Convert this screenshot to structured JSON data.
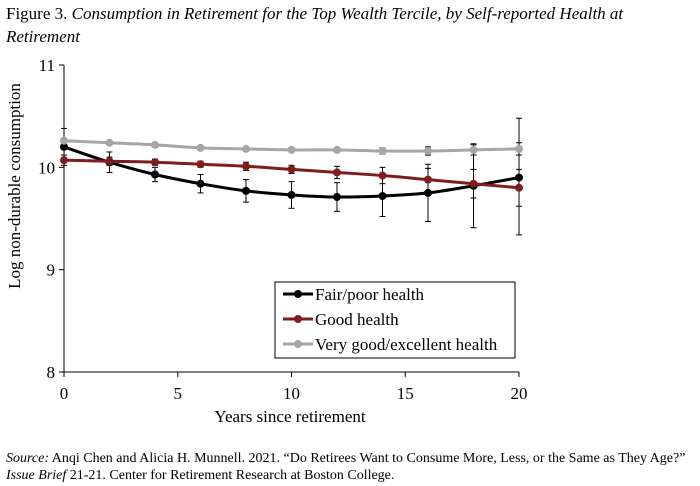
{
  "figure": {
    "number_label": "Figure 3.",
    "title": "Consumption in Retirement for the Top Wealth Tercile, by Self-reported Health at Retirement"
  },
  "source": {
    "label": "Source:",
    "text_1": " Anqi Chen and Alicia H. Munnell. 2021. “Do Retirees Want to Consume More, Less, or the Same as They Age?” ",
    "publication": "Issue Brief",
    "text_2": " 21-21. Center for Retirement Research at Boston College."
  },
  "chart_data": {
    "type": "line",
    "xlabel": "Years since retirement",
    "ylabel": "Log non-durable consumption",
    "xlim": [
      0,
      20
    ],
    "ylim": [
      8,
      11
    ],
    "x_ticks": [
      "0",
      "5",
      "10",
      "15",
      "20"
    ],
    "y_ticks": [
      "8",
      "9",
      "10",
      "11"
    ],
    "grid": false,
    "legend_position": "lower-right",
    "x": [
      0,
      2,
      4,
      6,
      8,
      10,
      12,
      14,
      16,
      18,
      20
    ],
    "series": [
      {
        "name": "Fair/poor health",
        "color": "#000000",
        "values": [
          10.2,
          10.05,
          9.93,
          9.84,
          9.77,
          9.73,
          9.71,
          9.72,
          9.75,
          9.82,
          9.9
        ],
        "err_low": [
          10.2,
          9.95,
          9.86,
          9.75,
          9.66,
          9.6,
          9.57,
          9.52,
          9.47,
          9.41,
          9.34
        ],
        "err_high": [
          10.2,
          10.15,
          10.0,
          9.93,
          9.88,
          9.86,
          9.85,
          9.92,
          10.03,
          10.23,
          10.48
        ]
      },
      {
        "name": "Good health",
        "color": "#7f1d1d",
        "values": [
          10.07,
          10.06,
          10.05,
          10.03,
          10.01,
          9.98,
          9.95,
          9.92,
          9.88,
          9.84,
          9.8
        ],
        "err_low": [
          10.02,
          10.02,
          10.02,
          10.0,
          9.97,
          9.94,
          9.89,
          9.84,
          9.77,
          9.7,
          9.62
        ],
        "err_high": [
          10.12,
          10.1,
          10.08,
          10.06,
          10.05,
          10.02,
          10.01,
          10.0,
          9.99,
          9.98,
          9.98
        ]
      },
      {
        "name": "Very good/excellent health",
        "color": "#a6a6a6",
        "values": [
          10.26,
          10.24,
          10.22,
          10.19,
          10.18,
          10.17,
          10.17,
          10.16,
          10.16,
          10.17,
          10.18
        ],
        "err_low": [
          10.26,
          10.22,
          10.2,
          10.17,
          10.16,
          10.15,
          10.15,
          10.13,
          10.12,
          10.12,
          10.12
        ],
        "err_high": [
          10.38,
          10.26,
          10.24,
          10.21,
          10.2,
          10.19,
          10.19,
          10.19,
          10.2,
          10.22,
          10.24
        ]
      }
    ]
  }
}
